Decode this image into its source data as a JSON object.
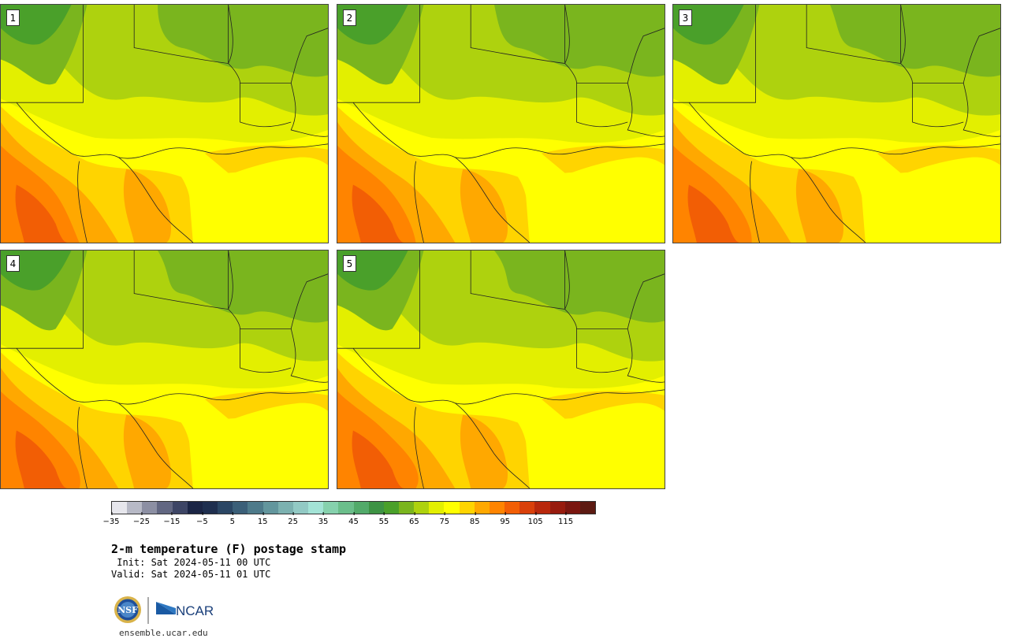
{
  "panels": [
    {
      "label": "1"
    },
    {
      "label": "2"
    },
    {
      "label": "3"
    },
    {
      "label": "4"
    },
    {
      "label": "5"
    }
  ],
  "colorbar": {
    "colors": [
      "#e6e6ec",
      "#b7b9c6",
      "#8c8fa3",
      "#626782",
      "#3d4565",
      "#1b2545",
      "#1f2f4f",
      "#2b4664",
      "#3b5f78",
      "#4e7a8a",
      "#63969d",
      "#7cb1b0",
      "#92c9c4",
      "#a3e3d6",
      "#86d1ad",
      "#6bbe8b",
      "#52aa6a",
      "#3d9344",
      "#4aa02a",
      "#7ab51e",
      "#aed20e",
      "#e3ef00",
      "#ffff00",
      "#ffd400",
      "#ffa800",
      "#ff8400",
      "#f25e05",
      "#d9400a",
      "#b8280c",
      "#971b0e",
      "#7a1610",
      "#5c1a12"
    ],
    "tick_labels": [
      "−35",
      "−25",
      "−15",
      "−5",
      "5",
      "15",
      "25",
      "35",
      "45",
      "55",
      "65",
      "75",
      "85",
      "95",
      "105",
      "115"
    ]
  },
  "title": "2-m temperature (F) postage stamp",
  "init": " Init: Sat 2024-05-11 00 UTC",
  "valid": "Valid: Sat 2024-05-11 01 UTC",
  "logos": {
    "left": "NSF",
    "right": "NCAR"
  },
  "url": "ensemble.ucar.edu"
}
